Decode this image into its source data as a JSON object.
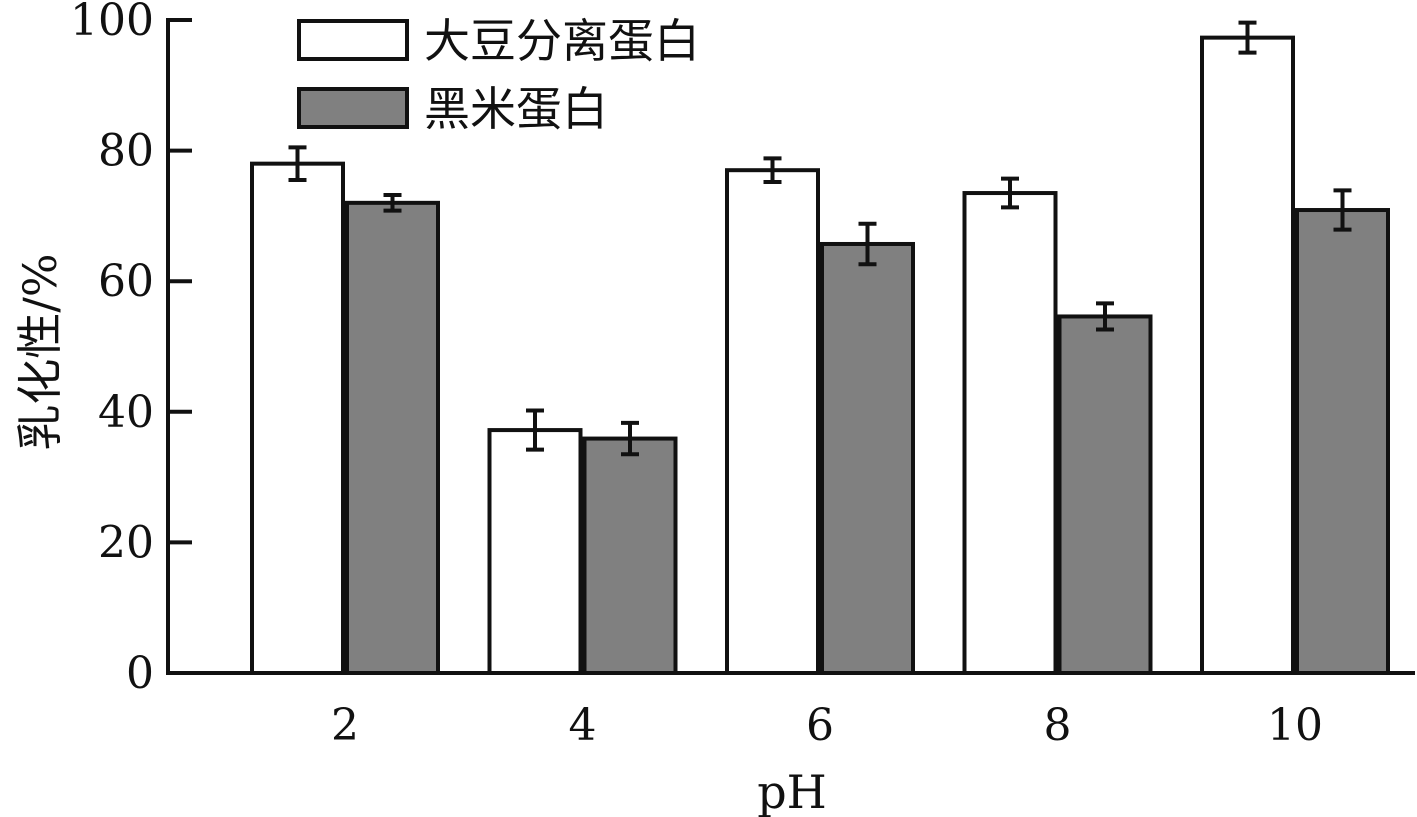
{
  "chart_data": {
    "type": "bar",
    "title": "",
    "xlabel": "pH",
    "ylabel": "乳化性/%",
    "ylim": [
      0,
      100
    ],
    "yticks": [
      0,
      20,
      40,
      60,
      80,
      100
    ],
    "categories": [
      "2",
      "4",
      "6",
      "8",
      "10"
    ],
    "series": [
      {
        "name": "大豆分离蛋白",
        "color": "#ffffff",
        "values": [
          78.0,
          37.2,
          77.0,
          73.5,
          97.3
        ],
        "errors": [
          2.5,
          3.0,
          1.8,
          2.2,
          2.3
        ]
      },
      {
        "name": "黑米蛋白",
        "color": "#808080",
        "values": [
          72.0,
          35.9,
          65.7,
          54.6,
          70.9
        ],
        "errors": [
          1.2,
          2.4,
          3.1,
          2.0,
          3.0
        ]
      }
    ],
    "legend_position": "top-left",
    "grid": false
  }
}
